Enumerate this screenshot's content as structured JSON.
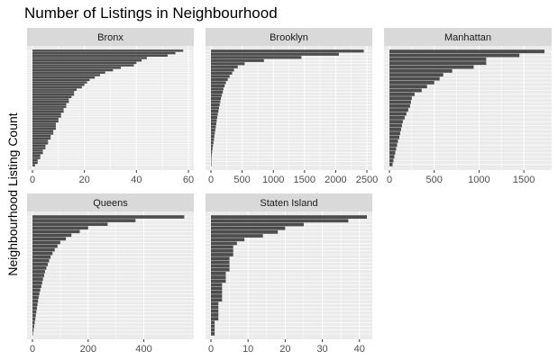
{
  "chart_data": {
    "type": "bar",
    "title": "Number of Listings in Neighbourhood",
    "ylabel": "Neighbourhood Listing Count",
    "xlabel": "",
    "colors": {
      "bar": "#4d4d4d",
      "panel": "#ebebeb",
      "strip": "#d9d9d9",
      "grid": "#ffffff"
    },
    "panels": [
      {
        "name": "Bronx",
        "xlim": [
          0,
          60
        ],
        "ticks": [
          0,
          20,
          40,
          60
        ],
        "tick_labels": [
          "0",
          "20",
          "40",
          "60"
        ],
        "values": [
          58,
          55,
          52,
          44,
          42,
          40,
          39,
          34,
          31,
          28,
          26,
          24,
          22,
          21,
          20,
          19,
          17,
          16,
          16,
          15,
          14,
          14,
          13,
          13,
          12,
          12,
          11,
          11,
          10,
          10,
          9,
          9,
          9,
          8,
          8,
          7,
          7,
          6,
          6,
          5,
          5,
          4,
          4,
          3,
          3,
          2,
          2,
          1
        ]
      },
      {
        "name": "Brooklyn",
        "xlim": [
          0,
          2500
        ],
        "ticks": [
          0,
          500,
          1000,
          1500,
          2000,
          2500
        ],
        "tick_labels": [
          "0",
          "500",
          "1000",
          "1500",
          "2000",
          "2500"
        ],
        "values": [
          2450,
          2050,
          1450,
          850,
          540,
          430,
          370,
          340,
          300,
          270,
          240,
          220,
          200,
          190,
          175,
          160,
          150,
          140,
          130,
          120,
          110,
          100,
          92,
          85,
          78,
          70,
          62,
          55,
          48,
          40,
          32,
          25,
          18,
          12,
          8,
          5,
          3
        ]
      },
      {
        "name": "Manhattan",
        "xlim": [
          0,
          1750
        ],
        "ticks": [
          0,
          500,
          1000,
          1500
        ],
        "tick_labels": [
          "0",
          "500",
          "1000",
          "1500"
        ],
        "values": [
          1730,
          1450,
          1080,
          1080,
          940,
          700,
          600,
          560,
          500,
          420,
          360,
          280,
          250,
          240,
          230,
          210,
          190,
          170,
          150,
          140,
          130,
          120,
          110,
          95,
          85,
          75,
          65,
          55,
          45,
          35
        ]
      },
      {
        "name": "Queens",
        "xlim": [
          0,
          560
        ],
        "ticks": [
          0,
          200,
          400
        ],
        "tick_labels": [
          "0",
          "200",
          "400"
        ],
        "values": [
          545,
          370,
          270,
          200,
          170,
          140,
          120,
          100,
          90,
          80,
          72,
          65,
          60,
          55,
          50,
          45,
          42,
          38,
          35,
          32,
          28,
          25,
          22,
          20,
          18,
          16,
          14,
          12,
          10,
          8,
          6,
          4,
          2
        ]
      },
      {
        "name": "Staten Island",
        "xlim": [
          0,
          42
        ],
        "ticks": [
          0,
          10,
          20,
          30,
          40
        ],
        "tick_labels": [
          "0",
          "10",
          "20",
          "30",
          "40"
        ],
        "values": [
          42,
          37,
          25,
          20,
          18,
          14,
          9,
          7,
          6,
          6,
          6,
          5,
          5,
          5,
          5,
          4,
          4,
          4,
          3,
          3,
          3,
          3,
          3,
          2,
          2,
          2,
          2,
          2,
          1,
          1,
          1,
          1
        ]
      }
    ]
  }
}
